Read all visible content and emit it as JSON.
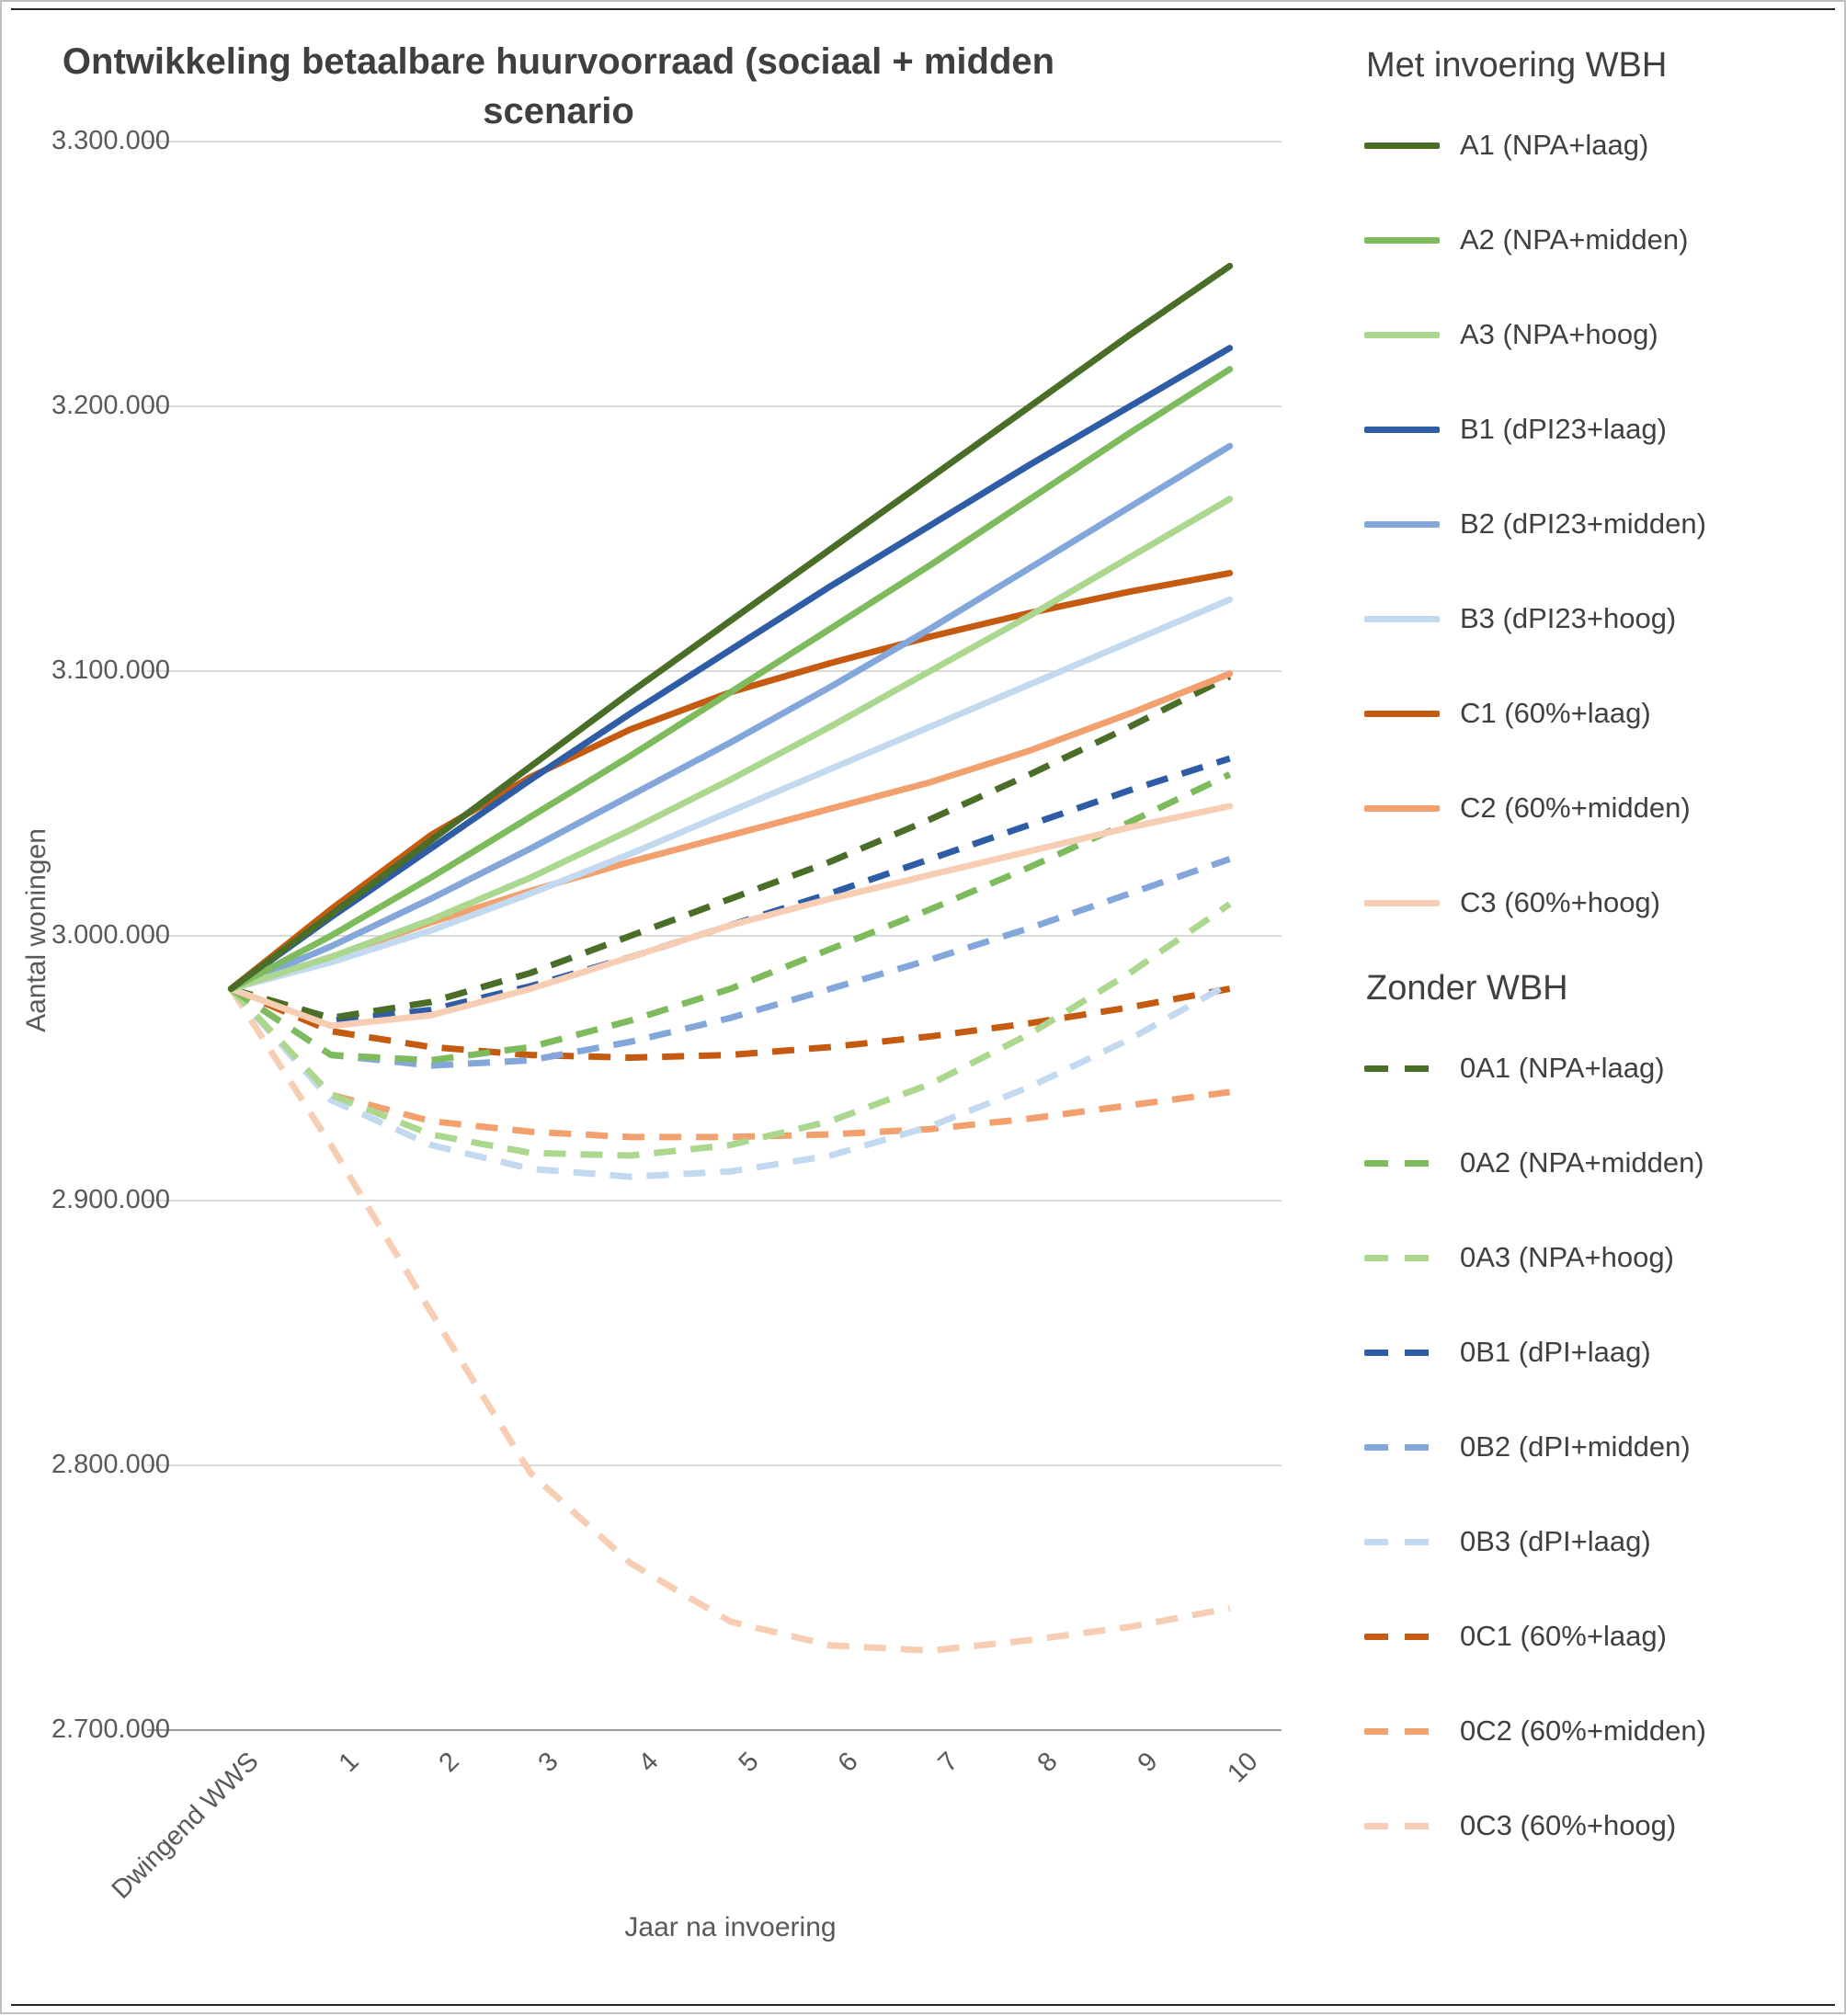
{
  "chart_data": {
    "type": "line",
    "title_line1": "Ontwikkeling betaalbare huurvoorraad (sociaal + midden",
    "title_line2": "scenario",
    "xlabel": "Jaar na invoering",
    "ylabel": "Aantal woningen",
    "ylim": [
      2700000,
      3300000
    ],
    "ytick_step": 100000,
    "ytick_labels": [
      "3.300.000",
      "3.200.000",
      "3.100.000",
      "3.000.000",
      "2.900.000",
      "2.800.000",
      "2.700.000"
    ],
    "grid": "horizontal",
    "gridline_color": "#d9d9d9",
    "axis_line_color": "#9d9d9d",
    "legend_position": "right",
    "categories": [
      "Dwingend WWS",
      "1",
      "2",
      "3",
      "4",
      "5",
      "6",
      "7",
      "8",
      "9",
      "10"
    ],
    "legend_groups": [
      {
        "heading": "Met invoering WBH",
        "style": "solid"
      },
      {
        "heading": "Zonder WBH",
        "style": "dashed"
      }
    ],
    "series": [
      {
        "id": "A1",
        "label": "A1 (NPA+laag)",
        "color": "#4A6E28",
        "dash": false,
        "group": 0,
        "values": [
          2980000,
          3008000,
          3036000,
          3064000,
          3092000,
          3119000,
          3146000,
          3173000,
          3200000,
          3227000,
          3253000
        ]
      },
      {
        "id": "A2",
        "label": "A2 (NPA+midden)",
        "color": "#7EBB5C",
        "dash": false,
        "group": 0,
        "values": [
          2980000,
          3000000,
          3022000,
          3045000,
          3068000,
          3092000,
          3116000,
          3140000,
          3165000,
          3190000,
          3214000
        ]
      },
      {
        "id": "A3",
        "label": "A3 (NPA+hoog)",
        "color": "#ABD78F",
        "dash": false,
        "group": 0,
        "values": [
          2980000,
          2992000,
          3006000,
          3022000,
          3040000,
          3059000,
          3079000,
          3100000,
          3121000,
          3143000,
          3165000
        ]
      },
      {
        "id": "B1",
        "label": "B1 (dPI23+laag)",
        "color": "#2E5DA6",
        "dash": false,
        "group": 0,
        "values": [
          2980000,
          3007000,
          3033000,
          3059000,
          3084000,
          3108000,
          3132000,
          3155000,
          3178000,
          3200000,
          3222000
        ]
      },
      {
        "id": "B2",
        "label": "B2 (dPI23+midden)",
        "color": "#84A7DB",
        "dash": false,
        "group": 0,
        "values": [
          2980000,
          2996000,
          3014000,
          3033000,
          3053000,
          3073000,
          3094000,
          3116000,
          3139000,
          3162000,
          3185000
        ]
      },
      {
        "id": "B3",
        "label": "B3 (dPI23+hoog)",
        "color": "#C3D9F0",
        "dash": false,
        "group": 0,
        "values": [
          2980000,
          2990000,
          3002000,
          3016000,
          3031000,
          3047000,
          3063000,
          3079000,
          3095000,
          3111000,
          3127000
        ]
      },
      {
        "id": "C1",
        "label": "C1 (60%+laag)",
        "color": "#C55A11",
        "dash": false,
        "group": 0,
        "values": [
          2980000,
          3010000,
          3038000,
          3060000,
          3078000,
          3092000,
          3103000,
          3113000,
          3122000,
          3130000,
          3137000
        ]
      },
      {
        "id": "C2",
        "label": "C2 (60%+midden)",
        "color": "#F2A06E",
        "dash": false,
        "group": 0,
        "values": [
          2980000,
          2992000,
          3005000,
          3017000,
          3028000,
          3038000,
          3048000,
          3058000,
          3070000,
          3084000,
          3099000
        ]
      },
      {
        "id": "C3",
        "label": "C3 (60%+hoog)",
        "color": "#F7CDB4",
        "dash": false,
        "group": 0,
        "values": [
          2980000,
          2966000,
          2970000,
          2980000,
          2992000,
          3004000,
          3014000,
          3023000,
          3032000,
          3041000,
          3049000
        ]
      },
      {
        "id": "0A1",
        "label": "0A1 (NPA+laag)",
        "color": "#4A6E28",
        "dash": true,
        "group": 1,
        "values": [
          2980000,
          2969000,
          2975000,
          2986000,
          3000000,
          3014000,
          3028000,
          3044000,
          3061000,
          3079000,
          3098000
        ]
      },
      {
        "id": "0A2",
        "label": "0A2 (NPA+midden)",
        "color": "#7EBB5C",
        "dash": true,
        "group": 1,
        "values": [
          2980000,
          2955000,
          2953000,
          2958000,
          2968000,
          2980000,
          2995000,
          3010000,
          3026000,
          3043000,
          3061000
        ]
      },
      {
        "id": "0A3",
        "label": "0A3 (NPA+hoog)",
        "color": "#ABD78F",
        "dash": true,
        "group": 1,
        "values": [
          2980000,
          2940000,
          2925000,
          2918000,
          2917000,
          2921000,
          2930000,
          2944000,
          2963000,
          2986000,
          3012000
        ]
      },
      {
        "id": "0B1",
        "label": "0B1 (dPI+laag)",
        "color": "#2E5DA6",
        "dash": true,
        "group": 1,
        "values": [
          2980000,
          2968000,
          2972000,
          2981000,
          2992000,
          3004000,
          3016000,
          3029000,
          3042000,
          3055000,
          3067000
        ]
      },
      {
        "id": "0B2",
        "label": "0B2 (dPI+midden)",
        "color": "#84A7DB",
        "dash": true,
        "group": 1,
        "values": [
          2980000,
          2955000,
          2951000,
          2953000,
          2960000,
          2969000,
          2980000,
          2991000,
          3003000,
          3016000,
          3029000
        ]
      },
      {
        "id": "0B3",
        "label": "0B3 (dPI+laag)",
        "color": "#C3D9F0",
        "dash": true,
        "group": 1,
        "values": [
          2980000,
          2938000,
          2921000,
          2912000,
          2909000,
          2911000,
          2917000,
          2928000,
          2943000,
          2961000,
          2982000
        ]
      },
      {
        "id": "0C1",
        "label": "0C1 (60%+laag)",
        "color": "#C55A11",
        "dash": true,
        "group": 1,
        "values": [
          2980000,
          2964000,
          2958000,
          2955000,
          2954000,
          2955000,
          2958000,
          2962000,
          2967000,
          2973000,
          2980000
        ]
      },
      {
        "id": "0C2",
        "label": "0C2 (60%+midden)",
        "color": "#F2A06E",
        "dash": true,
        "group": 1,
        "values": [
          2980000,
          2940000,
          2930000,
          2926000,
          2924000,
          2924000,
          2925000,
          2927000,
          2931000,
          2936000,
          2941000
        ]
      },
      {
        "id": "0C3",
        "label": "0C3 (60%+hoog)",
        "color": "#F7CDB4",
        "dash": true,
        "group": 1,
        "values": [
          2980000,
          2921000,
          2858000,
          2797000,
          2763000,
          2741000,
          2732000,
          2730000,
          2734000,
          2739000,
          2746000
        ]
      }
    ]
  }
}
